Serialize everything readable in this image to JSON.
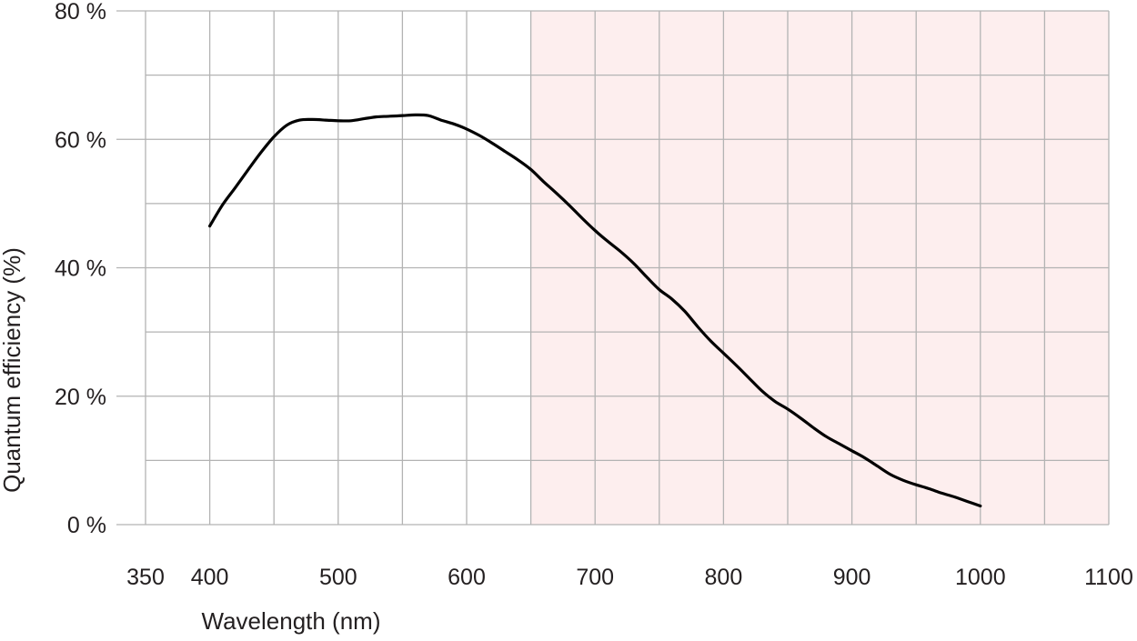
{
  "chart_data": {
    "type": "line",
    "xlabel": "Wavelength (nm)",
    "ylabel": "Quantum efficiency (%)",
    "xlim": [
      350,
      1100
    ],
    "ylim": [
      0,
      80
    ],
    "x_ticks": [
      {
        "value": 350,
        "label": "350"
      },
      {
        "value": 400,
        "label": "400"
      },
      {
        "value": 500,
        "label": "500"
      },
      {
        "value": 600,
        "label": "600"
      },
      {
        "value": 700,
        "label": "700"
      },
      {
        "value": 800,
        "label": "800"
      },
      {
        "value": 900,
        "label": "900"
      },
      {
        "value": 1000,
        "label": "1000"
      },
      {
        "value": 1100,
        "label": "1100"
      }
    ],
    "x_gridlines": [
      350,
      400,
      450,
      500,
      550,
      600,
      650,
      700,
      750,
      800,
      850,
      900,
      950,
      1000,
      1050,
      1100
    ],
    "y_ticks": [
      {
        "value": 0,
        "label": "0 %"
      },
      {
        "value": 20,
        "label": "20 %"
      },
      {
        "value": 40,
        "label": "40 %"
      },
      {
        "value": 60,
        "label": "60 %"
      },
      {
        "value": 80,
        "label": "80 %"
      }
    ],
    "y_gridlines": [
      0,
      10,
      20,
      30,
      40,
      50,
      60,
      70,
      80
    ],
    "grid": true,
    "shaded_region": {
      "x_start": 650,
      "x_end": 1100,
      "color": "#fdeeee"
    },
    "series": [
      {
        "color": "#000000",
        "x": [
          400,
          410,
          420,
          430,
          440,
          450,
          460,
          470,
          480,
          490,
          500,
          510,
          520,
          530,
          540,
          550,
          560,
          570,
          580,
          590,
          600,
          610,
          620,
          630,
          640,
          650,
          660,
          670,
          680,
          690,
          700,
          710,
          720,
          730,
          740,
          750,
          760,
          770,
          780,
          790,
          800,
          810,
          820,
          830,
          840,
          850,
          860,
          870,
          880,
          890,
          900,
          910,
          920,
          930,
          940,
          950,
          960,
          970,
          980,
          990,
          1000
        ],
        "y": [
          46.5,
          49.8,
          52.5,
          55.3,
          58.0,
          60.4,
          62.2,
          63.0,
          63.1,
          63.0,
          62.9,
          62.9,
          63.2,
          63.5,
          63.6,
          63.7,
          63.8,
          63.7,
          63.0,
          62.4,
          61.6,
          60.6,
          59.4,
          58.1,
          56.8,
          55.3,
          53.4,
          51.6,
          49.7,
          47.7,
          45.8,
          44.1,
          42.5,
          40.7,
          38.6,
          36.6,
          35.1,
          33.2,
          30.8,
          28.6,
          26.7,
          24.8,
          22.8,
          20.8,
          19.2,
          18.0,
          16.6,
          15.1,
          13.7,
          12.6,
          11.5,
          10.4,
          9.1,
          7.8,
          6.9,
          6.2,
          5.6,
          4.9,
          4.3,
          3.6,
          2.9
        ]
      }
    ]
  }
}
